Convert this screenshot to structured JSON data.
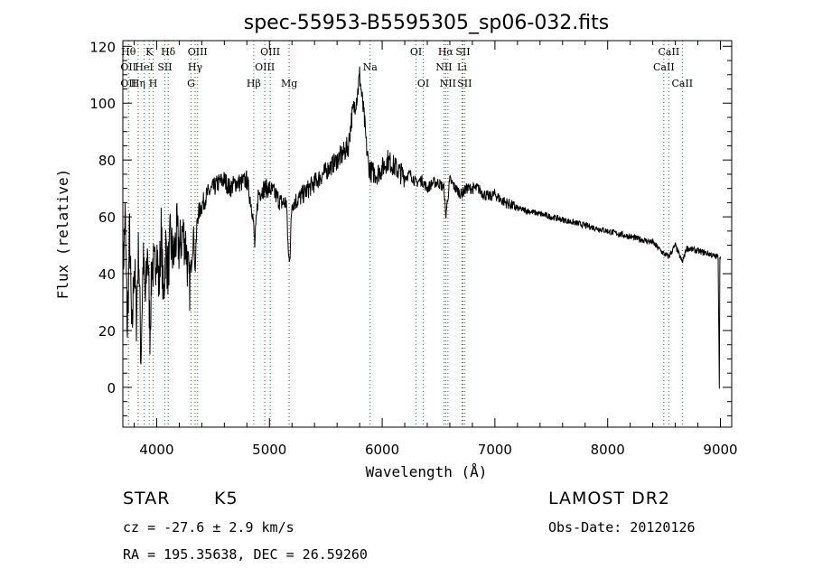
{
  "chart_data": {
    "type": "line",
    "title": "spec-55953-B5595305_sp06-032.fits",
    "xlabel": "Wavelength (Å)",
    "ylabel": "Flux (relative)",
    "xlim": [
      3700,
      9100
    ],
    "ylim": [
      -14,
      122
    ],
    "xticks": [
      4000,
      5000,
      6000,
      7000,
      8000,
      9000
    ],
    "yticks": [
      0,
      20,
      40,
      60,
      80,
      100,
      120
    ],
    "grid": false,
    "line_color": "#000000",
    "marker_color": "#cc2222",
    "series": [
      {
        "x": [
          3700,
          3720,
          3740,
          3760,
          3780,
          3800,
          3820,
          3840,
          3860,
          3880,
          3900,
          3920,
          3940,
          3960,
          3980,
          4000,
          4020,
          4040,
          4060,
          4080,
          4100,
          4120,
          4150,
          4180,
          4200,
          4230,
          4260,
          4290,
          4310,
          4330,
          4340,
          4360,
          4400,
          4450,
          4500,
          4550,
          4600,
          4650,
          4700,
          4750,
          4800,
          4850,
          4870,
          4900,
          4950,
          5000,
          5050,
          5100,
          5150,
          5170,
          5183,
          5200,
          5250,
          5300,
          5350,
          5400,
          5450,
          5500,
          5550,
          5600,
          5650,
          5700,
          5730,
          5760,
          5780,
          5800,
          5820,
          5840,
          5860,
          5880,
          5900,
          5950,
          6000,
          6050,
          6100,
          6150,
          6200,
          6250,
          6300,
          6350,
          6400,
          6450,
          6500,
          6550,
          6563,
          6600,
          6650,
          6700,
          6750,
          6800,
          6850,
          6900,
          6950,
          7000,
          7050,
          7100,
          7150,
          7200,
          7300,
          7400,
          7500,
          7600,
          7700,
          7800,
          7900,
          8000,
          8100,
          8200,
          8300,
          8400,
          8498,
          8542,
          8600,
          8662,
          8700,
          8800,
          8900,
          8950,
          8980,
          8990,
          8995,
          9000
        ],
        "y": [
          40,
          60,
          20,
          55,
          15,
          45,
          25,
          50,
          10,
          45,
          30,
          50,
          20,
          45,
          40,
          50,
          35,
          55,
          30,
          50,
          40,
          52,
          45,
          55,
          48,
          55,
          50,
          35,
          45,
          55,
          40,
          60,
          64,
          68,
          70,
          72,
          73,
          70,
          72,
          72,
          73,
          62,
          50,
          68,
          70,
          70,
          68,
          65,
          65,
          45,
          48,
          65,
          66,
          68,
          70,
          72,
          74,
          76,
          78,
          80,
          82,
          85,
          95,
          100,
          103,
          110,
          102,
          95,
          85,
          78,
          76,
          75,
          77,
          80,
          78,
          76,
          74,
          75,
          72,
          73,
          70,
          72,
          72,
          70,
          60,
          73,
          70,
          68,
          70,
          70,
          70,
          68,
          67,
          68,
          66,
          65,
          64,
          63,
          62,
          61,
          60,
          59,
          58,
          57,
          56,
          55,
          54,
          53,
          52,
          51,
          47,
          46,
          50,
          44,
          49,
          48,
          47,
          46,
          46,
          0,
          45,
          46
        ]
      }
    ],
    "line_markers": [
      {
        "x": 3750,
        "labels": [
          {
            "text": "Hθ",
            "row": 0
          },
          {
            "text": "OII",
            "row": 1
          },
          {
            "text": "OII",
            "row": 2
          }
        ]
      },
      {
        "x": 3835,
        "labels": [
          {
            "text": "Hη",
            "row": 2
          }
        ]
      },
      {
        "x": 3889,
        "labels": [
          {
            "text": "HeI",
            "row": 1
          }
        ]
      },
      {
        "x": 3934,
        "labels": [
          {
            "text": "K",
            "row": 0
          }
        ]
      },
      {
        "x": 3969,
        "labels": [
          {
            "text": "H",
            "row": 2
          }
        ]
      },
      {
        "x": 4072,
        "labels": [
          {
            "text": "SII",
            "row": 1
          }
        ]
      },
      {
        "x": 4102,
        "labels": [
          {
            "text": "Hδ",
            "row": 0
          }
        ]
      },
      {
        "x": 4305,
        "labels": [
          {
            "text": "G",
            "row": 2
          }
        ]
      },
      {
        "x": 4341,
        "labels": [
          {
            "text": "Hγ",
            "row": 1
          }
        ]
      },
      {
        "x": 4363,
        "labels": [
          {
            "text": "OIII",
            "row": 0
          }
        ]
      },
      {
        "x": 4861,
        "labels": [
          {
            "text": "Hβ",
            "row": 2
          }
        ]
      },
      {
        "x": 4959,
        "labels": [
          {
            "text": "OIII",
            "row": 1
          }
        ]
      },
      {
        "x": 5007,
        "labels": [
          {
            "text": "OIII",
            "row": 0
          }
        ]
      },
      {
        "x": 5175,
        "labels": [
          {
            "text": "Mg",
            "row": 2
          }
        ]
      },
      {
        "x": 5893,
        "labels": [
          {
            "text": "Na",
            "row": 1
          }
        ]
      },
      {
        "x": 6300,
        "labels": [
          {
            "text": "OI",
            "row": 0
          }
        ]
      },
      {
        "x": 6364,
        "labels": [
          {
            "text": "OI",
            "row": 2
          }
        ]
      },
      {
        "x": 6548,
        "labels": [
          {
            "text": "NII",
            "row": 1
          }
        ]
      },
      {
        "x": 6563,
        "labels": [
          {
            "text": "Hα",
            "row": 0
          }
        ]
      },
      {
        "x": 6583,
        "labels": [
          {
            "text": "NII",
            "row": 2
          }
        ]
      },
      {
        "x": 6708,
        "labels": [
          {
            "text": "Li",
            "row": 1
          }
        ]
      },
      {
        "x": 6716,
        "labels": [
          {
            "text": "SII",
            "row": 0
          }
        ]
      },
      {
        "x": 6731,
        "labels": [
          {
            "text": "SII",
            "row": 2
          }
        ]
      },
      {
        "x": 8498,
        "labels": [
          {
            "text": "CaII",
            "row": 1
          }
        ]
      },
      {
        "x": 8542,
        "labels": [
          {
            "text": "CaII",
            "row": 0
          }
        ]
      },
      {
        "x": 8662,
        "labels": [
          {
            "text": "CaII",
            "row": 2
          }
        ]
      }
    ]
  },
  "info": {
    "class": "STAR",
    "subclass": "K5",
    "survey": "LAMOST DR2",
    "cz": "cz = -27.6 ± 2.9 km/s",
    "obs_date": "Obs-Date: 20120126",
    "coords": "RA = 195.35638, DEC =  26.59260"
  }
}
